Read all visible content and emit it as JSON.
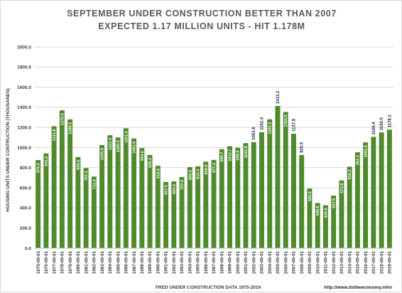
{
  "title_line1": "SEPTEMBER UNDER CONSTRUCTION BETTER THAN 2007",
  "title_line2": "EXPECTED  1.17 MILLION UNITS - HIT 1.178M",
  "source_note": "http://www.itstheeconomy.info/",
  "colors": {
    "bar": "#4f8a2c",
    "grid": "#d9d9d9",
    "inside_label": "#ffffff",
    "outside_label": "#1f2a44"
  },
  "chart_data": {
    "type": "bar",
    "title": "SEPTEMBER UNDER CONSTRUCTION BETTER THAN 2007",
    "subtitle": "EXPECTED  1.17 MILLION UNITS - HIT 1.178M",
    "xlabel": "FRED UNDER CONSTRUCTION DATA 1975-2019",
    "ylabel": "HOUSING UNITS UNDER CONTRUCTION (THOUSANDS)",
    "ylim": [
      0,
      2000
    ],
    "ytick_step": 200,
    "ytick_labels": [
      "0.0",
      "200.0",
      "400.0",
      "600.0",
      "800.0",
      "1000.0",
      "1200.0",
      "1400.0",
      "1600.0",
      "1800.0",
      "2000.0"
    ],
    "grid": true,
    "legend": "none",
    "categories": [
      "1975-09-01",
      "1976-09-01",
      "1977-09-01",
      "1978-09-01",
      "1979-09-01",
      "1980-09-01",
      "1981-09-01",
      "1982-09-01",
      "1983-09-01",
      "1984-09-01",
      "1985-09-01",
      "1986-09-01",
      "1987-09-01",
      "1988-09-01",
      "1989-09-01",
      "1990-09-01",
      "1991-09-01",
      "1992-09-01",
      "1993-09-01",
      "1994-09-01",
      "1995-09-01",
      "1996-09-01",
      "1997-09-01",
      "1998-09-01",
      "1999-09-01",
      "2000-09-01",
      "2001-09-01",
      "2002-09-01",
      "2003-09-01",
      "2004-09-01",
      "2005-09-01",
      "2006-09-01",
      "2007-09-01",
      "2008-09-01",
      "2009-09-01",
      "2010-09-01",
      "2011-09-01",
      "2012-09-01",
      "2013-09-01",
      "2014-09-01",
      "2015-09-01",
      "2016-09-01",
      "2017-09-01",
      "2018-09-01",
      "2019-09-01"
    ],
    "values": [
      876.0,
      941.6,
      1211.8,
      1370.0,
      1280.0,
      905.5,
      797.1,
      711.8,
      1025.0,
      1122.4,
      1100.3,
      1191.6,
      1091.0,
      994.6,
      926.2,
      818.8,
      657.5,
      664.0,
      707.6,
      806.0,
      813.4,
      858.9,
      877.2,
      984.7,
      1012.7,
      998.9,
      1043.8,
      1053.8,
      1152.4,
      1281.5,
      1413.2,
      1354.0,
      1137.9,
      926.5,
      592.8,
      448.8,
      426.8,
      523.5,
      673.8,
      810.2,
      953.1,
      1051.5,
      1106.4,
      1150.5,
      1178.1
    ],
    "data_labels": [
      "876.0",
      "941.6",
      "1211.8",
      "1370.0",
      "1280.0",
      "905.5",
      "797.1",
      "711.8",
      "1025.0",
      "1122.4",
      "1100.3",
      "1191.6",
      "1091.0",
      "994.6",
      "926.2",
      "818.8",
      "657.5",
      "664.0",
      "707.6",
      "806.0",
      "813.4",
      "858.9",
      "877.2",
      "984.7",
      "1012.7",
      "998.9",
      "1043.8",
      "1053.8",
      "1152.4",
      "1281.5",
      "1413.2",
      "1354.0",
      "1137.9",
      "926.5",
      "592.8",
      "448.8",
      "426.8",
      "523.5",
      "673.8",
      "810.2",
      "953.1",
      "1051.5",
      "1106.4",
      "1150.5",
      "1178.1"
    ],
    "label_outside": [
      27,
      28,
      30,
      32,
      33,
      42,
      43,
      44
    ]
  }
}
